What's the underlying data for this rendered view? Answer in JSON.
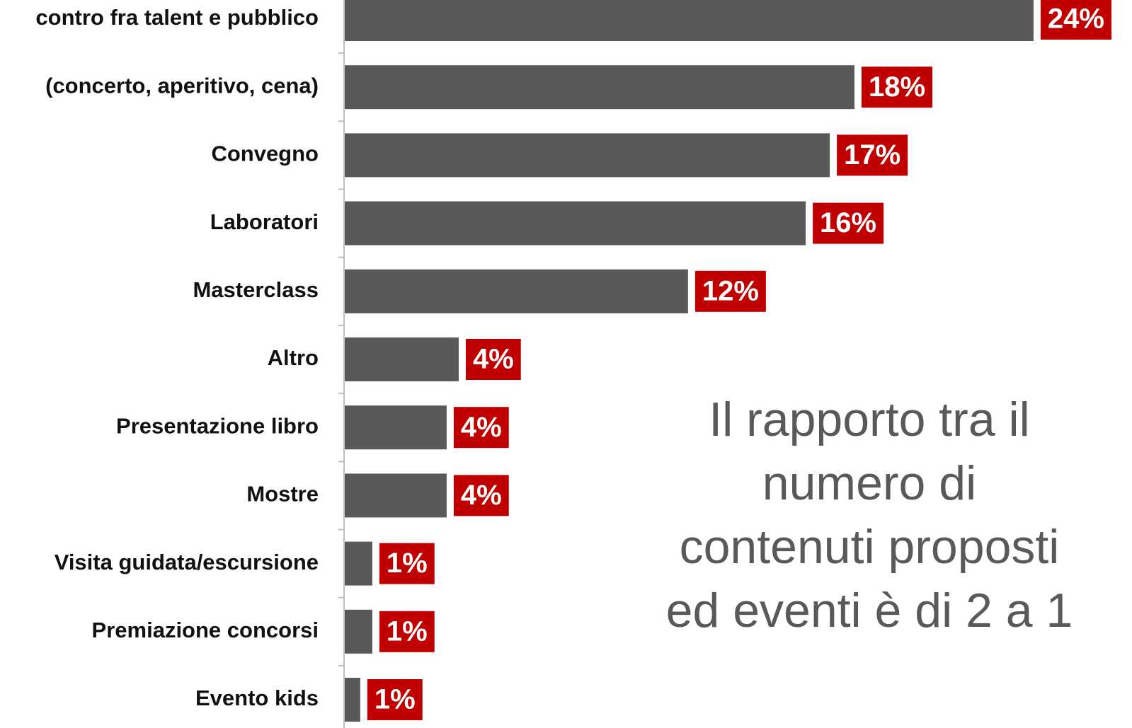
{
  "chart_data": {
    "type": "barh",
    "categories": [
      "contro fra talent e pubblico",
      "(concerto, aperitivo, cena)",
      "Convegno",
      "Laboratori",
      "Masterclass",
      "Altro",
      "Presentazione libro",
      "Mostre",
      "Visita guidata/escursione",
      "Premiazione concorsi",
      "Evento kids"
    ],
    "values": [
      24,
      17.76,
      16.9,
      16.06,
      11.96,
      3.97,
      3.55,
      3.55,
      0.96,
      0.96,
      0.54
    ],
    "value_labels": [
      "24%",
      "18%",
      "17%",
      "16%",
      "12%",
      "4%",
      "4%",
      "4%",
      "1%",
      "1%",
      "1%"
    ],
    "color": "#595959",
    "label_color": "#c00000",
    "xlim": [
      0,
      26
    ],
    "annotation": [
      "Il rapporto tra il",
      "numero di",
      "contenuti proposti",
      "ed eventi è di 2 a 1"
    ]
  }
}
